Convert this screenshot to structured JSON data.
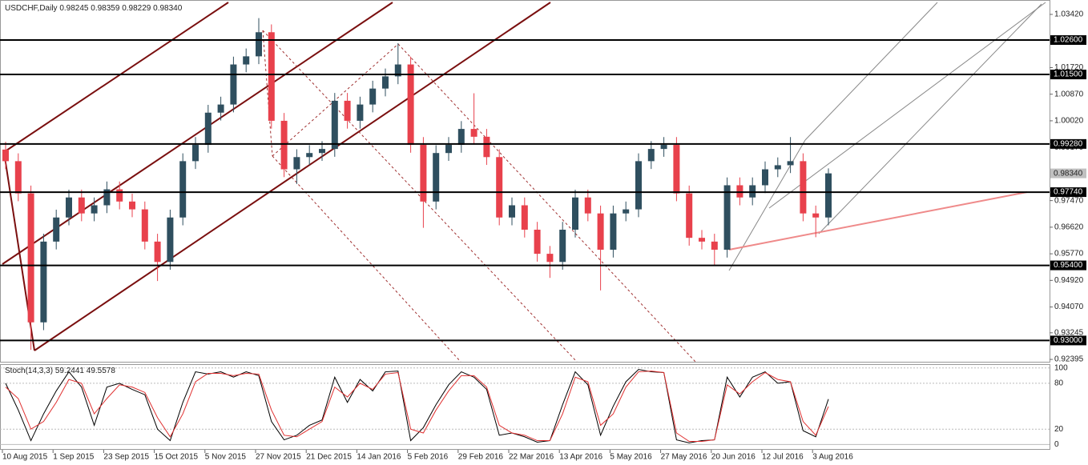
{
  "chart_data": [
    {
      "type": "candlestick",
      "title": "USDCHF,Daily",
      "quote": [
        0.98245,
        0.98359,
        0.98229,
        {
          "value": 0.9834,
          "label": "0.98340"
        }
      ],
      "categories": [
        "10 Aug 2015",
        null,
        null,
        null,
        "1 Sep 2015",
        null,
        null,
        null,
        "23 Sep 2015",
        null,
        null,
        null,
        "15 Oct 2015",
        null,
        null,
        null,
        "5 Nov 2015",
        null,
        null,
        null,
        "27 Nov 2015",
        null,
        null,
        null,
        "21 Dec 2015",
        null,
        null,
        null,
        "14 Jan 2016",
        null,
        null,
        null,
        "5 Feb 2016",
        null,
        null,
        null,
        "29 Feb 2016",
        null,
        null,
        null,
        "22 Mar 2016",
        null,
        null,
        null,
        "13 Apr 2016",
        null,
        null,
        null,
        "5 May 2016",
        null,
        null,
        null,
        "27 May 2016",
        null,
        null,
        null,
        "20 Jun 2016",
        null,
        null,
        null,
        "12 Jul 2016",
        null,
        null,
        null,
        "3 Aug 2016",
        null
      ],
      "open": [
        0.991,
        0.9873,
        0.977,
        0.9358,
        0.9616,
        0.9693,
        0.9757,
        0.9706,
        0.9732,
        0.9783,
        0.9744,
        0.9719,
        0.9616,
        0.9551,
        0.9693,
        0.9873,
        0.9925,
        1.0028,
        1.0054,
        1.0182,
        1.0208,
        1.0285,
        1.0002,
        0.9847,
        0.9886,
        0.9899,
        0.9912,
        1.0066,
        1.0002,
        1.0054,
        1.0105,
        1.0144,
        1.0182,
        0.9925,
        0.9744,
        0.9899,
        0.9925,
        0.9976,
        0.9951,
        0.9886,
        0.9693,
        0.9732,
        0.9654,
        0.9577,
        0.9551,
        0.9654,
        0.9757,
        0.9706,
        0.959,
        0.9706,
        0.9719,
        0.9873,
        0.9912,
        0.9925,
        0.977,
        0.9628,
        0.9616,
        0.959,
        0.9796,
        0.9757,
        0.9796,
        0.9847,
        0.986,
        0.9873,
        0.9706,
        0.9693
      ],
      "high": [
        0.9935,
        0.9898,
        0.9795,
        0.9641,
        0.9718,
        0.9782,
        0.9782,
        0.9757,
        0.9808,
        0.9808,
        0.9769,
        0.9744,
        0.9641,
        0.9718,
        0.9898,
        0.995,
        1.0053,
        1.0079,
        1.0207,
        1.0233,
        1.033,
        1.031,
        1.0027,
        0.9911,
        0.9924,
        0.9937,
        1.0091,
        1.0091,
        1.0079,
        1.013,
        1.0169,
        1.025,
        1.0207,
        0.995,
        0.9924,
        0.995,
        1.0001,
        1.009,
        0.9976,
        0.9911,
        0.9757,
        0.9757,
        0.9679,
        0.9602,
        0.9679,
        0.9782,
        0.9782,
        0.9731,
        0.9731,
        0.9744,
        0.9898,
        0.9937,
        0.995,
        0.995,
        0.9795,
        0.9653,
        0.9641,
        0.9821,
        0.9821,
        0.9821,
        0.9872,
        0.9885,
        0.995,
        0.9898,
        0.9731,
        0.985
      ],
      "low": [
        0.9848,
        0.9745,
        0.927,
        0.9333,
        0.9591,
        0.9668,
        0.9681,
        0.9681,
        0.9707,
        0.9719,
        0.9694,
        0.9591,
        0.949,
        0.9526,
        0.9668,
        0.9848,
        0.99,
        1.0003,
        1.0029,
        1.0157,
        1.0183,
        0.9977,
        0.9822,
        0.98,
        0.9861,
        0.9874,
        0.9887,
        0.9977,
        0.9977,
        1.0029,
        1.008,
        1.0119,
        0.99,
        0.966,
        0.9719,
        0.9874,
        0.99,
        0.9926,
        0.9861,
        0.9668,
        0.9668,
        0.9629,
        0.9552,
        0.95,
        0.9526,
        0.9629,
        0.9681,
        0.946,
        0.9565,
        0.9681,
        0.9694,
        0.9848,
        0.9887,
        0.9745,
        0.9603,
        0.9591,
        0.954,
        0.9565,
        0.9732,
        0.9732,
        0.9771,
        0.9822,
        0.9835,
        0.9681,
        0.963,
        0.9668
      ],
      "close": [
        0.9873,
        0.977,
        0.9358,
        0.9616,
        0.9693,
        0.9757,
        0.9706,
        0.9732,
        0.9783,
        0.9744,
        0.9719,
        0.9616,
        0.9551,
        0.9693,
        0.9873,
        0.9925,
        1.0028,
        1.0054,
        1.0182,
        1.0208,
        1.0285,
        1.0002,
        0.9847,
        0.9886,
        0.9899,
        0.9912,
        1.0066,
        1.0002,
        1.0054,
        1.0105,
        1.0144,
        1.0182,
        0.9925,
        0.9744,
        0.9899,
        0.9925,
        0.9976,
        0.9951,
        0.9886,
        0.9693,
        0.9732,
        0.9654,
        0.9577,
        0.9551,
        0.9654,
        0.9757,
        0.9706,
        0.959,
        0.9706,
        0.9719,
        0.9873,
        0.9912,
        0.9925,
        0.977,
        0.9628,
        0.9616,
        0.959,
        0.9796,
        0.9757,
        0.9796,
        0.9847,
        0.986,
        0.9873,
        0.9706,
        0.9693,
        0.9834
      ],
      "up_color": "#2f4f5f",
      "down_color": "#e8414c",
      "ylim": [
        0.9232,
        1.0388
      ],
      "yticks": [
        {
          "value": 1.0342,
          "label": "1.03420"
        },
        {
          "value": 1.0172,
          "label": "1.01720"
        },
        {
          "value": 1.0087,
          "label": "1.00870"
        },
        {
          "value": 1.0002,
          "label": "1.00020"
        },
        {
          "value": 0.9917,
          "label": "0.99170"
        },
        {
          "value": 0.9747,
          "label": "0.97470"
        },
        {
          "value": 0.9662,
          "label": "0.96620"
        },
        {
          "value": 0.9577,
          "label": "0.95770"
        },
        {
          "value": 0.9492,
          "label": "0.94920"
        },
        {
          "value": 0.9407,
          "label": "0.94070"
        },
        {
          "value": 0.93245,
          "label": "0.93245"
        },
        {
          "value": 0.92395,
          "label": "0.92395"
        }
      ],
      "levels": [
        {
          "value": 1.026,
          "label": "1.02600"
        },
        {
          "value": 1.015,
          "label": "1.01500"
        },
        {
          "value": 0.9928,
          "label": "0.99280"
        },
        {
          "value": 0.9774,
          "label": "0.97740"
        },
        {
          "value": 0.954,
          "label": "0.95400"
        },
        {
          "value": 0.93,
          "label": "0.93000"
        }
      ],
      "current_price": {
        "value": 0.9834,
        "label": "0.98340"
      }
    },
    {
      "type": "line",
      "title": "Stoch(14,3,3)",
      "series": [
        {
          "color": "#000000",
          "values": [
            80,
            45,
            5,
            40,
            70,
            95,
            75,
            25,
            75,
            80,
            72,
            65,
            20,
            5,
            55,
            95,
            92,
            95,
            88,
            95,
            90,
            30,
            6,
            12,
            25,
            32,
            88,
            55,
            85,
            70,
            95,
            96,
            5,
            22,
            52,
            78,
            95,
            88,
            72,
            12,
            15,
            10,
            3,
            5,
            52,
            95,
            78,
            12,
            50,
            82,
            98,
            95,
            94,
            6,
            2,
            5,
            6,
            88,
            62,
            88,
            95,
            80,
            82,
            18,
            10,
            59.2441
          ]
        },
        {
          "color": "#e03030",
          "values": [
            75,
            60,
            20,
            30,
            55,
            85,
            80,
            40,
            60,
            78,
            75,
            68,
            35,
            10,
            40,
            82,
            93,
            93,
            90,
            93,
            92,
            45,
            12,
            10,
            20,
            30,
            75,
            62,
            80,
            72,
            92,
            94,
            20,
            15,
            45,
            70,
            90,
            90,
            75,
            25,
            15,
            12,
            5,
            5,
            40,
            88,
            82,
            25,
            40,
            75,
            95,
            96,
            94,
            15,
            4,
            4,
            6,
            78,
            66,
            82,
            94,
            85,
            82,
            30,
            12,
            49.5578
          ]
        }
      ],
      "ylim": [
        -7,
        105
      ],
      "yticks": [
        100,
        80,
        20,
        0
      ]
    }
  ]
}
